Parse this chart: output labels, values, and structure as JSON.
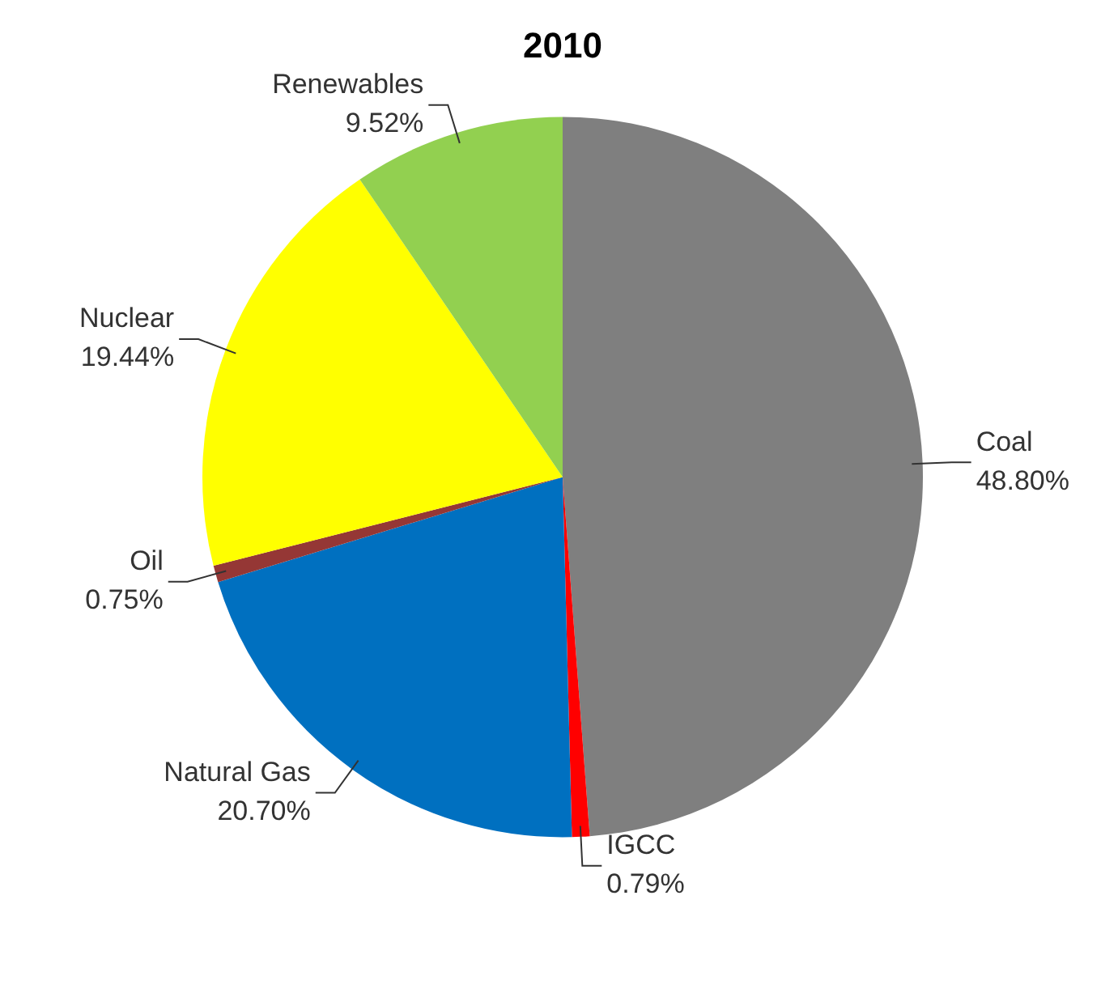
{
  "chart_data": {
    "type": "pie",
    "title": "2010",
    "categories": [
      "Coal",
      "IGCC",
      "Natural Gas",
      "Oil",
      "Nuclear",
      "Renewables"
    ],
    "values": [
      48.8,
      0.79,
      20.7,
      0.75,
      19.44,
      9.52
    ],
    "value_labels": [
      "48.80%",
      "0.79%",
      "20.70%",
      "0.75%",
      "19.44%",
      "9.52%"
    ],
    "colors": [
      "#7f7f7f",
      "#ff0000",
      "#0070c0",
      "#953735",
      "#ffff00",
      "#92d050"
    ],
    "legend": false
  }
}
